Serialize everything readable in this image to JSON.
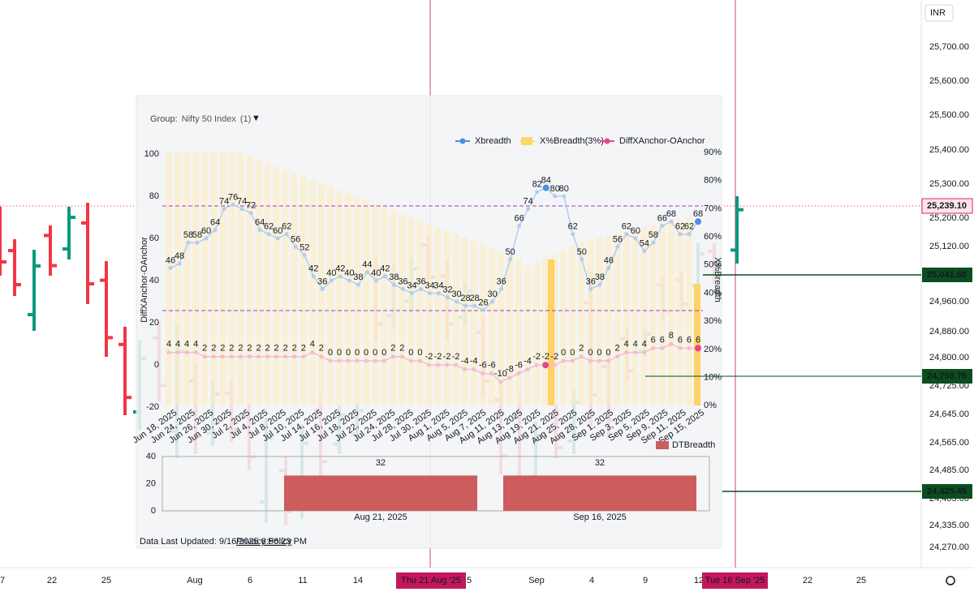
{
  "price_axis": {
    "currency": "INR",
    "labels": [
      "25,700.00",
      "25,600.00",
      "25,500.00",
      "25,400.00",
      "25,300.00",
      "25,200.00",
      "25,120.00",
      "24,960.00",
      "24,880.00",
      "24,800.00",
      "24,725.00",
      "24,645.00",
      "24,565.00",
      "24,485.00",
      "24,405.00",
      "24,335.00",
      "24,270.00"
    ]
  },
  "price_tags": [
    "25,239.10",
    "25,041.60",
    "24,750.75",
    "24,425.45"
  ],
  "time_axis": {
    "labels": [
      "7",
      "22",
      "25",
      "Aug",
      "6",
      "11",
      "14",
      "5",
      "Sep",
      "4",
      "9",
      "12",
      "22",
      "25"
    ],
    "crosshair_dates": [
      "Thu 21 Aug '25",
      "Tue 16 Sep '25"
    ]
  },
  "overlay": {
    "group_label": "Group:",
    "group_name": "Nifty 50 Index",
    "group_count": "(1)",
    "legend": [
      "Xbreadth",
      "X%Breadth(3%)",
      "DiffXAnchor-OAnchor"
    ],
    "left_axis_title": "DiffXAnchor-OAnchor",
    "left_ticks": [
      100,
      80,
      60,
      40,
      20,
      0,
      -20
    ],
    "right_axis_title": "X%Breadth",
    "right_ticks": [
      "90%",
      "80%",
      "70%",
      "60%",
      "50%",
      "40%",
      "30%",
      "20%",
      "10%",
      "0%"
    ],
    "xbreadth_labels": [
      46,
      48,
      58,
      58,
      60,
      64,
      74,
      76,
      74,
      72,
      64,
      62,
      60,
      62,
      56,
      52,
      42,
      36,
      40,
      42,
      40,
      38,
      44,
      40,
      42,
      38,
      36,
      34,
      36,
      34,
      34,
      32,
      30,
      28,
      28,
      26,
      30,
      36,
      50,
      66,
      74,
      82,
      84,
      80,
      80,
      62,
      50,
      36,
      38,
      46,
      56,
      62,
      60,
      54,
      58,
      66,
      68,
      62,
      62,
      68
    ],
    "diff_labels": [
      4,
      4,
      4,
      4,
      2,
      2,
      2,
      2,
      2,
      2,
      2,
      2,
      2,
      2,
      2,
      2,
      4,
      2,
      0,
      0,
      0,
      0,
      0,
      0,
      0,
      2,
      2,
      0,
      0,
      -2,
      -2,
      -2,
      -2,
      -4,
      -4,
      -6,
      -6,
      -10,
      -8,
      -6,
      -4,
      -2,
      -2,
      -2,
      0,
      0,
      2,
      0,
      0,
      0,
      2,
      4,
      4,
      4,
      6,
      6,
      8,
      6,
      6,
      6
    ],
    "date_labels": [
      "Jun 18, 2025",
      "Jun 24, 2025",
      "Jun 26, 2025",
      "Jun 30, 2025",
      "Jul 2, 2025",
      "Jul 4, 2025",
      "Jul 8, 2025",
      "Jul 10, 2025",
      "Jul 14, 2025",
      "Jul 16, 2025",
      "Jul 18, 2025",
      "Jul 22, 2025",
      "Jul 24, 2025",
      "Jul 28, 2025",
      "Jul 30, 2025",
      "Aug 1, 2025",
      "Aug 5, 2025",
      "Aug 7, 2025",
      "Aug 11, 2025",
      "Aug 13, 2025",
      "Aug 19, 2025",
      "Aug 21, 2025",
      "Aug 25, 2025",
      "Aug 28, 2025",
      "Sep 1, 2025",
      "Sep 3, 2025",
      "Sep 5, 2025",
      "Sep 9, 2025",
      "Sep 11, 2025",
      "Sep 15, 2025"
    ],
    "dt_legend": "DTBreadth",
    "dt_ticks": [
      40,
      20,
      0
    ],
    "dt_bars": [
      {
        "value": 32,
        "date": "Aug 21, 2025"
      },
      {
        "value": 32,
        "date": "Sep 16, 2025"
      }
    ],
    "footer_updated": "Data Last Updated: 9/16/2025 8:56:23 PM",
    "footer_link": "Privacy Policy"
  }
}
